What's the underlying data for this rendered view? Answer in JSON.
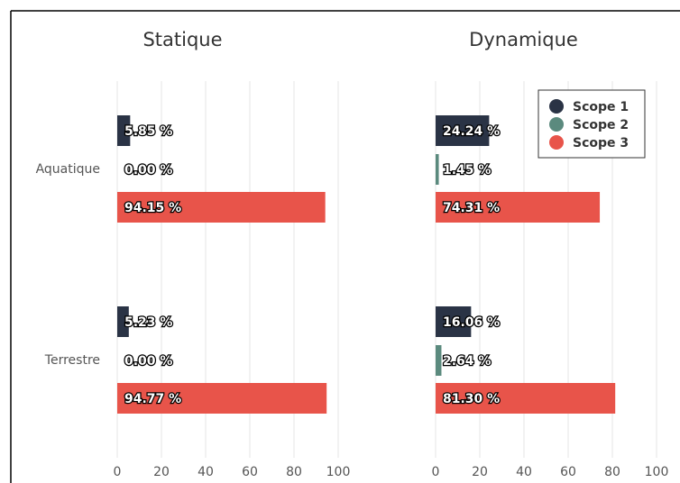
{
  "chart_data": [
    {
      "type": "bar",
      "orientation": "horizontal",
      "title": "Statique",
      "categories": [
        "Aquatique",
        "Terrestre"
      ],
      "series": [
        {
          "color": "#2a3345",
          "values": [
            5.85,
            5.23
          ],
          "value_labels": [
            "5.85 %",
            "5.23 %"
          ]
        },
        {
          "color": "#5b8a7e",
          "values": [
            0.0,
            0.0
          ],
          "value_labels": [
            "0.00 %",
            "0.00 %"
          ]
        },
        {
          "color": "#e8544a",
          "values": [
            94.15,
            94.77
          ],
          "value_labels": [
            "94.15 %",
            "94.77 %"
          ]
        }
      ],
      "xlim": [
        0,
        100
      ],
      "xticks": [
        0,
        20,
        40,
        60,
        80,
        100
      ],
      "grid": true
    },
    {
      "type": "bar",
      "orientation": "horizontal",
      "title": "Dynamique",
      "series": [
        {
          "name": "Scope 1",
          "color": "#2a3345",
          "values": [
            24.24,
            16.06
          ],
          "value_labels": [
            "24.24 %",
            "16.06 %"
          ]
        },
        {
          "name": "Scope 2",
          "color": "#5b8a7e",
          "values": [
            1.45,
            2.64
          ],
          "value_labels": [
            "1.45 %",
            "2.64 %"
          ]
        },
        {
          "name": "Scope 3",
          "color": "#e8544a",
          "values": [
            74.31,
            81.3
          ],
          "value_labels": [
            "74.31 %",
            "81.30 %"
          ]
        }
      ],
      "xlim": [
        0,
        100
      ],
      "xticks": [
        0,
        20,
        40,
        60,
        80,
        100
      ],
      "grid": true,
      "legend": "upper right"
    }
  ]
}
